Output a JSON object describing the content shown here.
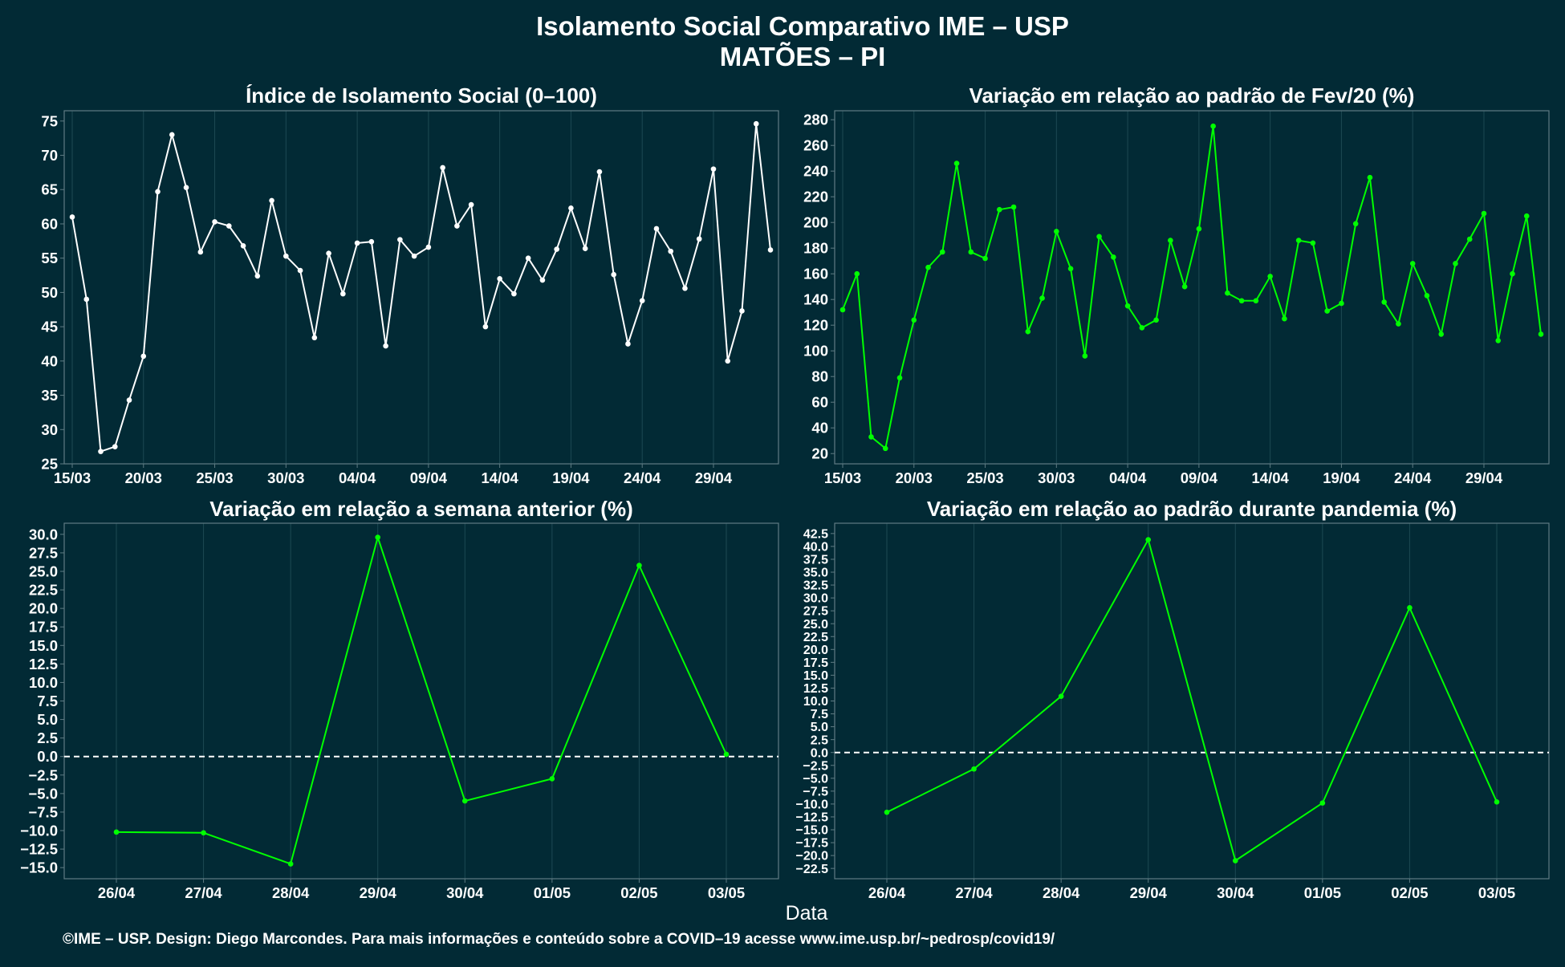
{
  "title": "Isolamento Social Comparativo IME – USP",
  "subtitle": "MATÕES – PI",
  "xlabel": "Data",
  "footer": "©IME – USP. Design: Diego Marcondes. Para mais informações e conteúdo sobre a COVID–19 acesse www.ime.usp.br/~pedrosp/covid19/",
  "colors": {
    "background": "#022a35",
    "panel_border": "#5f7b83",
    "grid": "#1d4953",
    "white_series": "#ffffff",
    "green": "#00ff00",
    "red": "#ff1a1a",
    "text": "#ffffff"
  },
  "chart_data": [
    {
      "type": "line",
      "title": "Índice de Isolamento Social (0–100)",
      "x": [
        "15/03",
        "16/03",
        "17/03",
        "18/03",
        "19/03",
        "20/03",
        "21/03",
        "22/03",
        "23/03",
        "24/03",
        "25/03",
        "26/03",
        "27/03",
        "28/03",
        "29/03",
        "30/03",
        "31/03",
        "01/04",
        "02/04",
        "03/04",
        "04/04",
        "05/04",
        "06/04",
        "07/04",
        "08/04",
        "09/04",
        "10/04",
        "11/04",
        "12/04",
        "13/04",
        "14/04",
        "15/04",
        "16/04",
        "17/04",
        "18/04",
        "19/04",
        "20/04",
        "21/04",
        "22/04",
        "23/04",
        "24/04",
        "25/04",
        "26/04",
        "27/04",
        "28/04",
        "29/04",
        "30/04",
        "01/05",
        "02/05",
        "03/05"
      ],
      "xticks": [
        "15/03",
        "20/03",
        "25/03",
        "30/03",
        "04/04",
        "09/04",
        "14/04",
        "19/04",
        "24/04",
        "29/04"
      ],
      "ylim": [
        25,
        76.5
      ],
      "yticks": [
        "25",
        "30",
        "35",
        "40",
        "45",
        "50",
        "55",
        "60",
        "65",
        "70",
        "75"
      ],
      "series": [
        {
          "values": [
            61.0,
            49.0,
            26.8,
            27.5,
            34.3,
            40.7,
            64.7,
            73.0,
            65.3,
            55.9,
            60.3,
            59.7,
            56.8,
            52.4,
            63.4,
            55.3,
            53.2,
            43.4,
            55.7,
            49.8,
            57.2,
            57.4,
            42.2,
            57.7,
            55.3,
            56.6,
            68.2,
            59.7,
            62.8,
            45.0,
            52.0,
            49.8,
            55.0,
            51.8,
            56.3,
            62.3,
            56.4,
            67.6,
            52.6,
            42.5,
            48.8,
            59.3,
            56.0,
            50.6,
            57.8,
            68.0,
            40.0,
            47.3,
            74.6,
            56.2
          ]
        }
      ]
    },
    {
      "type": "line",
      "title": "Variação em relação ao padrão de Fev/20 (%)",
      "x": [
        "15/03",
        "16/03",
        "17/03",
        "18/03",
        "19/03",
        "20/03",
        "21/03",
        "22/03",
        "23/03",
        "24/03",
        "25/03",
        "26/03",
        "27/03",
        "28/03",
        "29/03",
        "30/03",
        "31/03",
        "01/04",
        "02/04",
        "03/04",
        "04/04",
        "05/04",
        "06/04",
        "07/04",
        "08/04",
        "09/04",
        "10/04",
        "11/04",
        "12/04",
        "13/04",
        "14/04",
        "15/04",
        "16/04",
        "17/04",
        "18/04",
        "19/04",
        "20/04",
        "21/04",
        "22/04",
        "23/04",
        "24/04",
        "25/04",
        "26/04",
        "27/04",
        "28/04",
        "29/04",
        "30/04",
        "01/05",
        "02/05",
        "03/05"
      ],
      "xticks": [
        "15/03",
        "20/03",
        "25/03",
        "30/03",
        "04/04",
        "09/04",
        "14/04",
        "19/04",
        "24/04",
        "29/04"
      ],
      "ylim": [
        12,
        287
      ],
      "yticks": [
        "20",
        "40",
        "60",
        "80",
        "100",
        "120",
        "140",
        "160",
        "180",
        "200",
        "220",
        "240",
        "260",
        "280"
      ],
      "series": [
        {
          "values": [
            132,
            160,
            33,
            24,
            79,
            124,
            165,
            177,
            246,
            177,
            172,
            210,
            212,
            115,
            141,
            193,
            164,
            96,
            189,
            173,
            135,
            118,
            124,
            186,
            150,
            195,
            275,
            145,
            139,
            139,
            158,
            125,
            186,
            184,
            131,
            137,
            199,
            235,
            138,
            121,
            168,
            143,
            113,
            168,
            187,
            207,
            108,
            160,
            205,
            113
          ]
        }
      ]
    },
    {
      "type": "line",
      "title": "Variação em relação a semana anterior (%)",
      "x": [
        "26/04",
        "27/04",
        "28/04",
        "29/04",
        "30/04",
        "01/05",
        "02/05",
        "03/05"
      ],
      "xticks": [
        "26/04",
        "27/04",
        "28/04",
        "29/04",
        "30/04",
        "01/05",
        "02/05",
        "03/05"
      ],
      "ylim": [
        -16.5,
        31.5
      ],
      "yticks": [
        "-15.0",
        "-12.5",
        "-10.0",
        "-7.5",
        "-5.0",
        "-2.5",
        "0.0",
        "2.5",
        "5.0",
        "7.5",
        "10.0",
        "12.5",
        "15.0",
        "17.5",
        "20.0",
        "22.5",
        "25.0",
        "27.5",
        "30.0"
      ],
      "reference_line": 0,
      "series": [
        {
          "values": [
            -10.2,
            -10.3,
            -14.5,
            29.6,
            -6.0,
            -3.0,
            25.8,
            0.3
          ]
        }
      ]
    },
    {
      "type": "line",
      "title": "Variação em relação ao padrão durante pandemia (%)",
      "x": [
        "26/04",
        "27/04",
        "28/04",
        "29/04",
        "30/04",
        "01/05",
        "02/05",
        "03/05"
      ],
      "xticks": [
        "26/04",
        "27/04",
        "28/04",
        "29/04",
        "30/04",
        "01/05",
        "02/05",
        "03/05"
      ],
      "ylim": [
        -24.5,
        44.5
      ],
      "yticks": [
        "-22.5",
        "-20.0",
        "-17.5",
        "-15.0",
        "-12.5",
        "-10.0",
        "-7.5",
        "-5.0",
        "-2.5",
        "0.0",
        "2.5",
        "5.0",
        "7.5",
        "10.0",
        "12.5",
        "15.0",
        "17.5",
        "20.0",
        "22.5",
        "25.0",
        "27.5",
        "30.0",
        "32.5",
        "35.0",
        "37.5",
        "40.0",
        "42.5"
      ],
      "reference_line": 0,
      "series": [
        {
          "values": [
            -11.6,
            -3.2,
            10.9,
            41.3,
            -21.0,
            -9.8,
            28.1,
            -9.6
          ]
        }
      ]
    }
  ]
}
